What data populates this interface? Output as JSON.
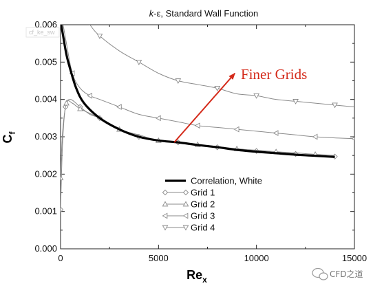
{
  "chart_data": {
    "type": "line",
    "title": "k-ε, Standard Wall Function",
    "title_parts": {
      "k": "k",
      "rest": "-ε, Standard Wall Function"
    },
    "xlabel": "Re",
    "xlabel_sub": "x",
    "ylabel": "C",
    "ylabel_sub": "f",
    "xlim": [
      0,
      15000
    ],
    "ylim": [
      0,
      0.006
    ],
    "xticks": [
      "0",
      "5000",
      "10000",
      "15000"
    ],
    "yticks": [
      "0.000",
      "0.001",
      "0.002",
      "0.003",
      "0.004",
      "0.005",
      "0.006"
    ],
    "series": [
      {
        "name": "Correlation, White",
        "marker": "none",
        "points": [
          [
            0,
            0.0061
          ],
          [
            100,
            0.0058
          ],
          [
            300,
            0.0052
          ],
          [
            500,
            0.0048
          ],
          [
            800,
            0.0043
          ],
          [
            1200,
            0.0039
          ],
          [
            2000,
            0.0035
          ],
          [
            3000,
            0.0032
          ],
          [
            4000,
            0.003
          ],
          [
            5000,
            0.0029
          ],
          [
            6000,
            0.00285
          ],
          [
            7000,
            0.00278
          ],
          [
            8000,
            0.00272
          ],
          [
            9000,
            0.00265
          ],
          [
            10000,
            0.0026
          ],
          [
            11000,
            0.00256
          ],
          [
            12000,
            0.00252
          ],
          [
            13000,
            0.00249
          ],
          [
            14000,
            0.00246
          ]
        ]
      },
      {
        "name": "Grid 1",
        "marker": "diamond",
        "points": [
          [
            0,
            0.00105
          ],
          [
            100,
            0.0028
          ],
          [
            250,
            0.0038
          ],
          [
            500,
            0.004
          ],
          [
            1000,
            0.0038
          ],
          [
            1500,
            0.0036
          ],
          [
            2000,
            0.0035
          ],
          [
            3000,
            0.0032
          ],
          [
            4000,
            0.003
          ],
          [
            5000,
            0.0029
          ],
          [
            6000,
            0.00285
          ],
          [
            7000,
            0.00278
          ],
          [
            8000,
            0.00272
          ],
          [
            9000,
            0.00266
          ],
          [
            10000,
            0.00262
          ],
          [
            11000,
            0.00258
          ],
          [
            12000,
            0.00254
          ],
          [
            13000,
            0.0025
          ],
          [
            14000,
            0.00247
          ]
        ]
      },
      {
        "name": "Grid 2",
        "marker": "triangle-up",
        "points": [
          [
            0,
            0.0019
          ],
          [
            100,
            0.0031
          ],
          [
            300,
            0.0039
          ],
          [
            600,
            0.0039
          ],
          [
            1000,
            0.00375
          ],
          [
            2000,
            0.0035
          ],
          [
            3000,
            0.0032
          ],
          [
            4000,
            0.00305
          ],
          [
            5000,
            0.0029
          ],
          [
            6000,
            0.00285
          ],
          [
            7000,
            0.00279
          ],
          [
            8000,
            0.00274
          ],
          [
            9000,
            0.00268
          ],
          [
            10000,
            0.00264
          ],
          [
            11000,
            0.0026
          ],
          [
            12000,
            0.00257
          ],
          [
            13000,
            0.00253
          ],
          [
            14000,
            0.0025
          ]
        ]
      },
      {
        "name": "Grid 3",
        "marker": "triangle-left",
        "points": [
          [
            0,
            0.0064
          ],
          [
            300,
            0.0055
          ],
          [
            600,
            0.0047
          ],
          [
            1000,
            0.0043
          ],
          [
            1500,
            0.0041
          ],
          [
            2000,
            0.004
          ],
          [
            3000,
            0.0038
          ],
          [
            4000,
            0.0036
          ],
          [
            5000,
            0.0035
          ],
          [
            6000,
            0.0034
          ],
          [
            7000,
            0.0033
          ],
          [
            8000,
            0.00325
          ],
          [
            9000,
            0.0032
          ],
          [
            10000,
            0.00315
          ],
          [
            11000,
            0.0031
          ],
          [
            12000,
            0.00305
          ],
          [
            13000,
            0.003
          ],
          [
            14000,
            0.00297
          ],
          [
            15000,
            0.00295
          ]
        ]
      },
      {
        "name": "Grid 4",
        "marker": "triangle-down",
        "points": [
          [
            900,
            0.0065
          ],
          [
            1500,
            0.006
          ],
          [
            2000,
            0.0057
          ],
          [
            3000,
            0.0053
          ],
          [
            4000,
            0.005
          ],
          [
            5000,
            0.0047
          ],
          [
            6000,
            0.0045
          ],
          [
            7000,
            0.0044
          ],
          [
            8000,
            0.0043
          ],
          [
            9000,
            0.00415
          ],
          [
            10000,
            0.0041
          ],
          [
            11000,
            0.004
          ],
          [
            12000,
            0.00395
          ],
          [
            13000,
            0.0039
          ],
          [
            14000,
            0.00385
          ],
          [
            15000,
            0.0038
          ]
        ]
      }
    ],
    "legend": [
      "Correlation, White",
      "Grid 1",
      "Grid 2",
      "Grid 3",
      "Grid 4"
    ],
    "legend_position": "lower-right",
    "grid": false,
    "annotation": {
      "text": "Finer Grids",
      "color": "#d42a1a",
      "arrow_from": [
        5800,
        0.00285
      ],
      "arrow_to": [
        8900,
        0.0047
      ]
    }
  },
  "watermark_top": "cf_ke_sw",
  "brand": {
    "text": "CFD之道",
    "icon": "wechat-icon"
  },
  "colors": {
    "thick_line": "#000000",
    "thin_line": "#8a8a8a",
    "marker": "#8a8a8a",
    "annotation": "#d42a1a"
  }
}
